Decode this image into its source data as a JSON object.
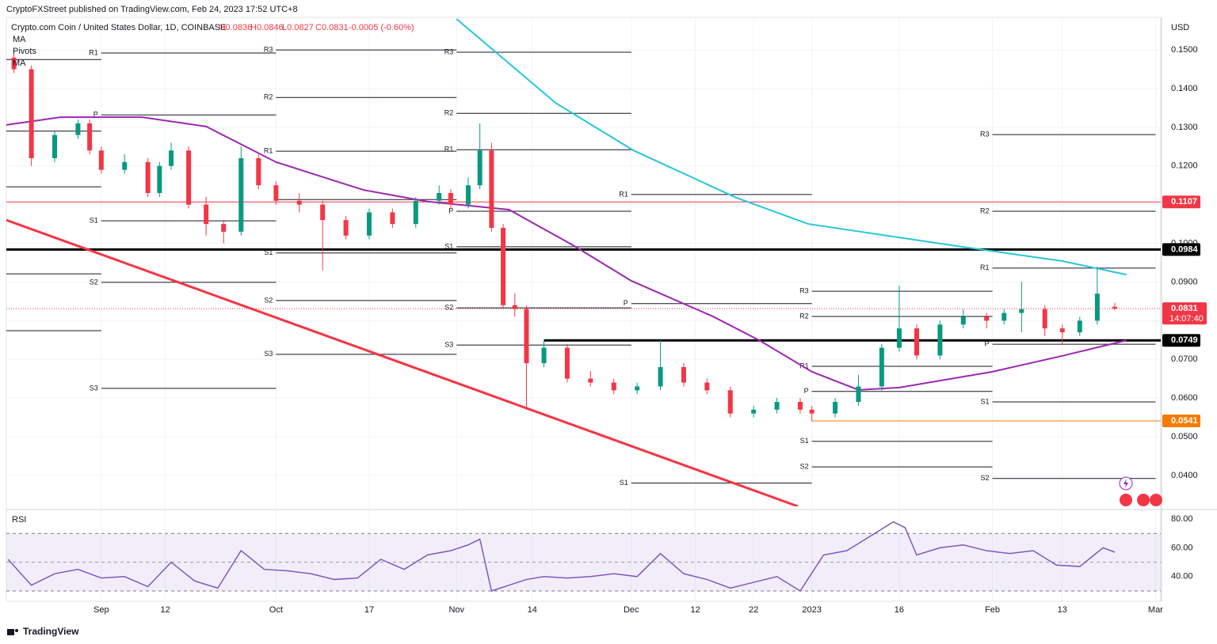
{
  "header": {
    "published": "CryptoFXStreet published on TradingView.com, Feb 24, 2023 17:52 UTC+8",
    "brand": "TradingView"
  },
  "chart_data": [
    {
      "type": "candlestick",
      "title": "Crypto.com Coin / United States Dollar, 1D, COINBASE",
      "ohlc_legend": [
        "O0.0836",
        "H0.0846",
        "L0.0827",
        "C0.0831",
        "-0.0005 (-0.60%)"
      ],
      "indicators": [
        "MA",
        "Pivots",
        "MA"
      ],
      "unit": "USD",
      "up_color": "#089981",
      "down_color": "#f23645",
      "x": [
        -15,
        -12,
        -8,
        -4,
        -2,
        0,
        4,
        8,
        10,
        12,
        15,
        18,
        21,
        24,
        27,
        30,
        34,
        38,
        42,
        46,
        50,
        54,
        58,
        60,
        63,
        65,
        67,
        69,
        71,
        73,
        76,
        80,
        84,
        88,
        92,
        96,
        100,
        104,
        108,
        112,
        116,
        120,
        122,
        126,
        130,
        134,
        137,
        140,
        144,
        148,
        152,
        155,
        158,
        162,
        165,
        168,
        171,
        174
      ],
      "open": [
        0.148,
        0.145,
        0.122,
        0.128,
        0.131,
        0.124,
        0.119,
        0.121,
        0.113,
        0.12,
        0.124,
        0.11,
        0.105,
        0.103,
        0.122,
        0.115,
        0.111,
        0.11,
        0.106,
        0.102,
        0.108,
        0.105,
        0.111,
        0.113,
        0.11,
        0.115,
        0.124,
        0.104,
        0.084,
        0.083,
        0.069,
        0.073,
        0.065,
        0.064,
        0.062,
        0.063,
        0.068,
        0.064,
        0.062,
        0.056,
        0.057,
        0.059,
        0.057,
        0.056,
        0.059,
        0.063,
        0.073,
        0.078,
        0.071,
        0.079,
        0.081,
        0.08,
        0.082,
        0.083,
        0.078,
        0.077,
        0.08,
        0.0836
      ],
      "high": [
        0.15,
        0.146,
        0.129,
        0.132,
        0.132,
        0.125,
        0.123,
        0.122,
        0.121,
        0.126,
        0.125,
        0.112,
        0.106,
        0.125,
        0.123,
        0.116,
        0.113,
        0.111,
        0.107,
        0.109,
        0.109,
        0.112,
        0.115,
        0.114,
        0.117,
        0.131,
        0.126,
        0.105,
        0.087,
        0.084,
        0.075,
        0.074,
        0.067,
        0.065,
        0.064,
        0.075,
        0.069,
        0.065,
        0.063,
        0.058,
        0.06,
        0.06,
        0.058,
        0.06,
        0.066,
        0.074,
        0.089,
        0.079,
        0.08,
        0.083,
        0.082,
        0.083,
        0.09,
        0.084,
        0.079,
        0.081,
        0.094,
        0.0846
      ],
      "low": [
        0.144,
        0.12,
        0.121,
        0.127,
        0.123,
        0.118,
        0.118,
        0.112,
        0.112,
        0.119,
        0.109,
        0.102,
        0.1,
        0.102,
        0.114,
        0.11,
        0.108,
        0.093,
        0.101,
        0.101,
        0.104,
        0.104,
        0.11,
        0.109,
        0.109,
        0.114,
        0.103,
        0.083,
        0.081,
        0.057,
        0.068,
        0.064,
        0.063,
        0.061,
        0.061,
        0.062,
        0.063,
        0.061,
        0.055,
        0.055,
        0.056,
        0.056,
        0.054,
        0.055,
        0.058,
        0.062,
        0.072,
        0.07,
        0.07,
        0.078,
        0.078,
        0.079,
        0.077,
        0.076,
        0.074,
        0.076,
        0.079,
        0.0827
      ],
      "close": [
        0.145,
        0.122,
        0.128,
        0.131,
        0.124,
        0.119,
        0.121,
        0.113,
        0.12,
        0.124,
        0.11,
        0.105,
        0.103,
        0.122,
        0.115,
        0.111,
        0.11,
        0.106,
        0.102,
        0.108,
        0.105,
        0.111,
        0.113,
        0.11,
        0.115,
        0.124,
        0.104,
        0.084,
        0.083,
        0.069,
        0.073,
        0.065,
        0.064,
        0.062,
        0.063,
        0.068,
        0.064,
        0.062,
        0.056,
        0.057,
        0.059,
        0.057,
        0.056,
        0.059,
        0.063,
        0.073,
        0.078,
        0.071,
        0.079,
        0.081,
        0.08,
        0.082,
        0.083,
        0.078,
        0.077,
        0.08,
        0.087,
        0.0831
      ],
      "series": [
        {
          "name": "MA",
          "color": "#26c6da",
          "x": [
            61,
            78,
            91.4,
            109,
            121.4,
            146,
            165,
            176
          ],
          "values": [
            0.158,
            0.1363,
            0.124,
            0.1118,
            0.105,
            0.0995,
            0.0954,
            0.0919
          ]
        },
        {
          "name": "MA",
          "color": "#9c27b0",
          "x": [
            -16.3,
            -7,
            7,
            18,
            30,
            45,
            56,
            70,
            81,
            91,
            105,
            113,
            122,
            130,
            137,
            153,
            165,
            176
          ],
          "values": [
            0.1306,
            0.1326,
            0.1326,
            0.1302,
            0.121,
            0.1138,
            0.1108,
            0.1087,
            0.0995,
            0.0903,
            0.0811,
            0.0749,
            0.0668,
            0.0621,
            0.0627,
            0.0668,
            0.0709,
            0.0749
          ]
        }
      ],
      "trendlines": [
        {
          "color": "#f23645",
          "x": [
            -16.3,
            119.6
          ],
          "values": [
            0.106,
            0.032
          ]
        }
      ],
      "levels": [
        {
          "value": 0.1107,
          "label": "0.1107",
          "color": "#f23645",
          "start": -16.3,
          "width": 1
        },
        {
          "value": 0.0984,
          "label": "0.0984",
          "color": "#000000",
          "start": -16.3,
          "width": 3
        },
        {
          "value": 0.0749,
          "label": "0.0749",
          "color": "#000000",
          "start": 76,
          "width": 3
        },
        {
          "value": 0.0541,
          "label": "0.0541",
          "color": "#f57c00",
          "start": 122,
          "width": 1
        }
      ],
      "last_price": {
        "value": 0.0831,
        "label": "0.0831",
        "countdown": "14:07:40",
        "color": "#f23645"
      },
      "pivots": [
        {
          "start": -16.3,
          "end": 0,
          "levels": [
            {
              "value": 0.1475
            },
            {
              "value": 0.129
            },
            {
              "value": 0.1146
            },
            {
              "value": 0.0921
            },
            {
              "value": 0.0774
            }
          ]
        },
        {
          "start": 0,
          "end": 30,
          "levels": [
            {
              "label": "R1",
              "value": 0.1492
            },
            {
              "label": "P",
              "value": 0.1332
            },
            {
              "label": "S1",
              "value": 0.1058
            },
            {
              "label": "S2",
              "value": 0.0899
            },
            {
              "label": "S3",
              "value": 0.0625
            }
          ]
        },
        {
          "start": 30,
          "end": 61,
          "levels": [
            {
              "label": "R3",
              "value": 0.15
            },
            {
              "label": "R2",
              "value": 0.1377
            },
            {
              "label": "R1",
              "value": 0.1238
            },
            {
              "value": 0.1113
            },
            {
              "label": "S1",
              "value": 0.0975
            },
            {
              "label": "S2",
              "value": 0.0852
            },
            {
              "label": "S3",
              "value": 0.0713
            }
          ]
        },
        {
          "start": 61,
          "end": 91,
          "levels": [
            {
              "label": "R3",
              "value": 0.1494
            },
            {
              "label": "R2",
              "value": 0.1336
            },
            {
              "label": "R1",
              "value": 0.1242
            },
            {
              "label": "P",
              "value": 0.1083
            },
            {
              "label": "S1",
              "value": 0.0991
            },
            {
              "label": "S2",
              "value": 0.0833
            },
            {
              "label": "S3",
              "value": 0.0737
            }
          ]
        },
        {
          "start": 91,
          "end": 122,
          "levels": [
            {
              "label": "R1",
              "value": 0.1126
            },
            {
              "label": "P",
              "value": 0.0844
            },
            {
              "label": "S1",
              "value": 0.038
            }
          ]
        },
        {
          "start": 122,
          "end": 153,
          "levels": [
            {
              "label": "R3",
              "value": 0.0876
            },
            {
              "label": "R2",
              "value": 0.0811
            },
            {
              "label": "R1",
              "value": 0.0682
            },
            {
              "label": "P",
              "value": 0.0617
            },
            {
              "label": "S1",
              "value": 0.0488
            },
            {
              "label": "S2",
              "value": 0.0422
            }
          ]
        },
        {
          "start": 153,
          "end": 181,
          "levels": [
            {
              "label": "R3",
              "value": 0.1281
            },
            {
              "label": "R2",
              "value": 0.1083
            },
            {
              "label": "R1",
              "value": 0.0936
            },
            {
              "label": "P",
              "value": 0.0739
            },
            {
              "label": "S1",
              "value": 0.059
            },
            {
              "label": "S2",
              "value": 0.0392
            }
          ]
        }
      ],
      "xlim": [
        -16.3,
        181.9
      ],
      "ylim": [
        0.032,
        0.1584
      ],
      "xticks": [
        {
          "value": 0,
          "label": "Sep"
        },
        {
          "value": 11,
          "label": "12"
        },
        {
          "value": 30,
          "label": "Oct"
        },
        {
          "value": 46,
          "label": "17"
        },
        {
          "value": 61,
          "label": "Nov"
        },
        {
          "value": 74,
          "label": "14"
        },
        {
          "value": 91,
          "label": "Dec"
        },
        {
          "value": 102,
          "label": "12"
        },
        {
          "value": 112,
          "label": "22"
        },
        {
          "value": 122,
          "label": "2023"
        },
        {
          "value": 137,
          "label": "16"
        },
        {
          "value": 153,
          "label": "Feb"
        },
        {
          "value": 165,
          "label": "13"
        },
        {
          "value": 181,
          "label": "Mar"
        }
      ],
      "yticks": [
        {
          "value": 0.15,
          "label": "0.1500"
        },
        {
          "value": 0.14,
          "label": "0.1400"
        },
        {
          "value": 0.13,
          "label": "0.1300"
        },
        {
          "value": 0.12,
          "label": "0.1200"
        },
        {
          "value": 0.11,
          "label": "0.1100"
        },
        {
          "value": 0.1,
          "label": "0.1000"
        },
        {
          "value": 0.09,
          "label": "0.0900"
        },
        {
          "value": 0.08,
          "label": "0.0800"
        },
        {
          "value": 0.07,
          "label": "0.0700"
        },
        {
          "value": 0.06,
          "label": "0.0600"
        },
        {
          "value": 0.05,
          "label": "0.0500"
        },
        {
          "value": 0.04,
          "label": "0.0400"
        }
      ],
      "grid": true
    },
    {
      "type": "line",
      "title": "RSI",
      "color": "#7e57c2",
      "x": [
        -16,
        -12,
        -8,
        -4,
        0,
        4,
        8,
        12,
        16,
        20,
        24,
        28,
        32,
        36,
        40,
        44,
        48,
        52,
        56,
        60,
        63,
        65,
        67,
        70,
        73,
        76,
        80,
        84,
        88,
        92,
        96,
        100,
        104,
        108,
        112,
        116,
        120,
        124,
        128,
        132,
        136,
        138,
        140,
        144,
        148,
        152,
        156,
        160,
        164,
        168,
        172,
        174
      ],
      "values": [
        52,
        34,
        42,
        45,
        39,
        40,
        33,
        50,
        37,
        32,
        58,
        45,
        44,
        42,
        38,
        39,
        52,
        45,
        55,
        58,
        62,
        66,
        30,
        34,
        38,
        40,
        39,
        40,
        42,
        40,
        56,
        42,
        38,
        32,
        36,
        40,
        30,
        55,
        58,
        68,
        78,
        74,
        55,
        60,
        62,
        58,
        56,
        58,
        48,
        47,
        60,
        57
      ],
      "band": [
        30,
        70
      ],
      "midline": 50,
      "xlim": [
        -16.3,
        181.9
      ],
      "ylim": [
        25.6,
        84.4
      ],
      "yticks": [
        {
          "value": 80,
          "label": "80.00"
        },
        {
          "value": 60,
          "label": "60.00"
        },
        {
          "value": 40,
          "label": "40.00"
        }
      ]
    }
  ]
}
